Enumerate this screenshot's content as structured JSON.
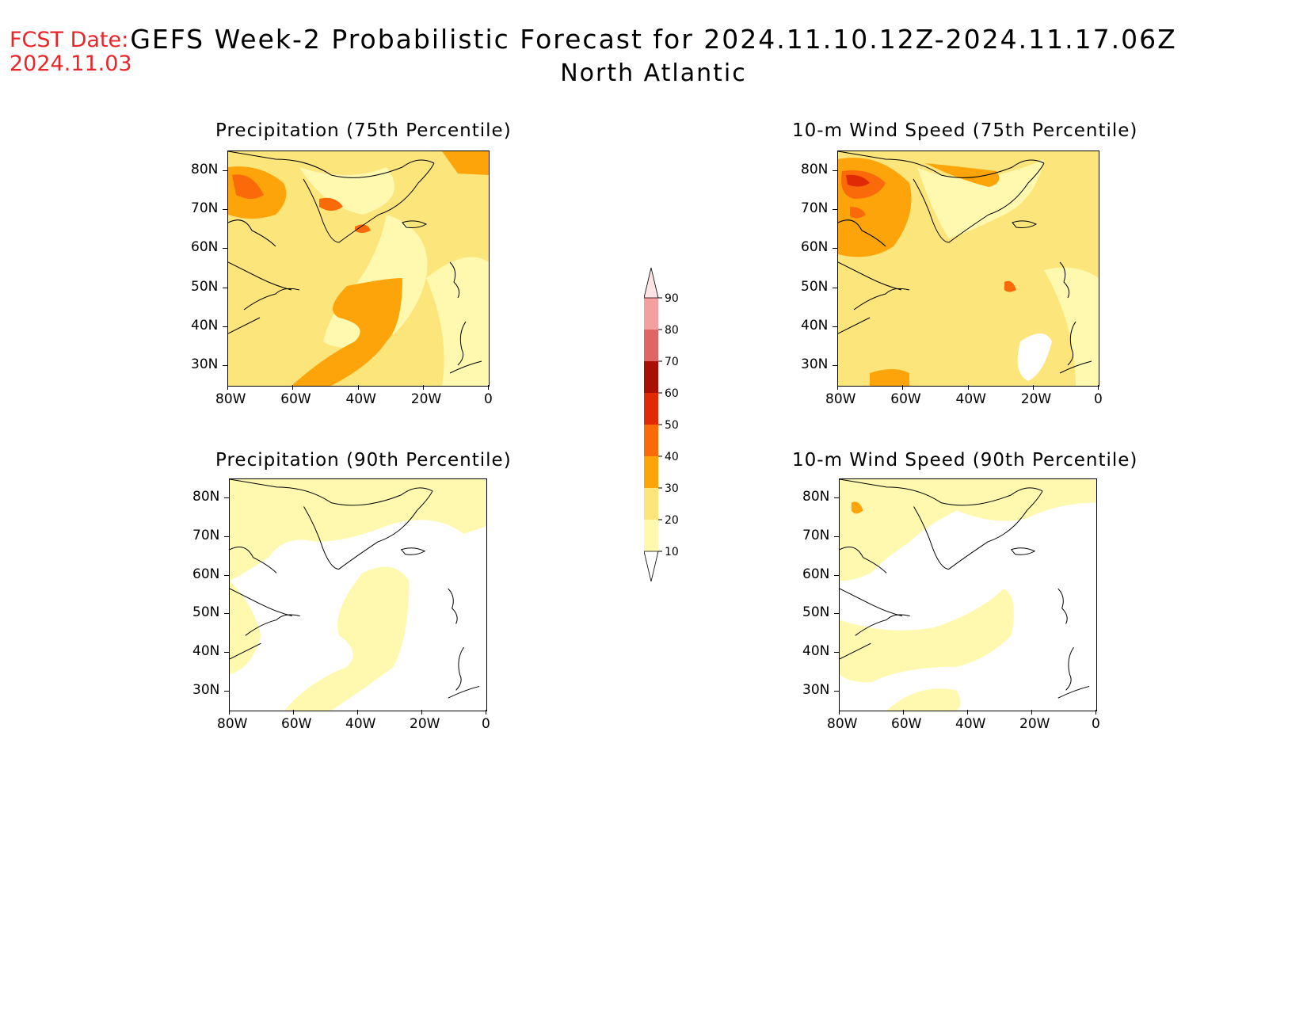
{
  "header": {
    "fcst_label": "FCST Date:",
    "fcst_date": "2024.11.03",
    "title": "GEFS Week-2 Probabilistic Forecast for 2024.11.10.12Z-2024.11.17.06Z",
    "subtitle": "North Atlantic"
  },
  "panels": [
    {
      "id": "precip75",
      "title": "Precipitation (75th Percentile)"
    },
    {
      "id": "wind75",
      "title": "10-m Wind Speed (75th Percentile)"
    },
    {
      "id": "precip90",
      "title": "Precipitation (90th Percentile)"
    },
    {
      "id": "wind90",
      "title": "10-m Wind Speed (90th Percentile)"
    }
  ],
  "axes": {
    "lat_labels": [
      "80N",
      "70N",
      "60N",
      "50N",
      "40N",
      "30N"
    ],
    "lon_labels": [
      "80W",
      "60W",
      "40W",
      "20W",
      "0"
    ]
  },
  "colorbar": {
    "levels": [
      "10",
      "20",
      "30",
      "40",
      "50",
      "60",
      "70",
      "80",
      "90"
    ],
    "colors": [
      "#fff9b0",
      "#fce57a",
      "#fca40a",
      "#fb6a09",
      "#e02a06",
      "#a81005",
      "#e06666",
      "#f5a0a0",
      "#fde4e4"
    ]
  },
  "map_colors": {
    "c10": "#fff9b0",
    "c20": "#fce57a",
    "c30": "#fca40a",
    "c40": "#fb6a09",
    "c50": "#e02a06",
    "c60": "#a81005"
  }
}
